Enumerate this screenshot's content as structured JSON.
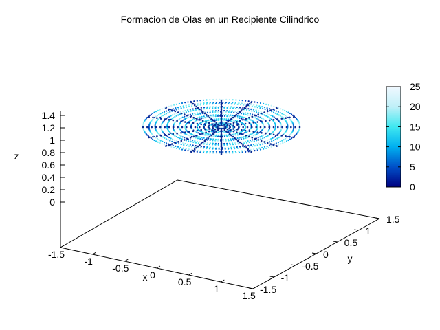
{
  "chart_data": {
    "type": "scatter",
    "title": "Formacion de Olas en un Recipiente Cilindrico",
    "xlabel": "x",
    "ylabel": "y",
    "zlabel": "z",
    "x_ticks": [
      "-1.5",
      "-1",
      "-0.5",
      "0",
      "0.5",
      "1",
      "1.5"
    ],
    "y_ticks": [
      "-1.5",
      "-1",
      "-0.5",
      "0",
      "0.5",
      "1",
      "1.5"
    ],
    "z_ticks": [
      "1.4",
      "1.2",
      "1",
      "0.8",
      "0.6",
      "0.4",
      "0.2",
      "0"
    ],
    "xlim": [
      -1.5,
      1.5
    ],
    "ylim": [
      -1.5,
      1.5
    ],
    "zlim": [
      0,
      1.4
    ],
    "surface": {
      "shape": "disc",
      "radius": 1.5,
      "z_level": 1.25,
      "rings": 13,
      "spokes": 16
    },
    "colorbar": {
      "ticks": [
        "25",
        "20",
        "15",
        "10",
        "5",
        "0"
      ],
      "range": [
        0,
        25
      ],
      "colors": [
        "#000080",
        "#0050c8",
        "#00b0f0",
        "#40e8f0",
        "#c0f0f8",
        "#f0f8ff"
      ]
    }
  }
}
